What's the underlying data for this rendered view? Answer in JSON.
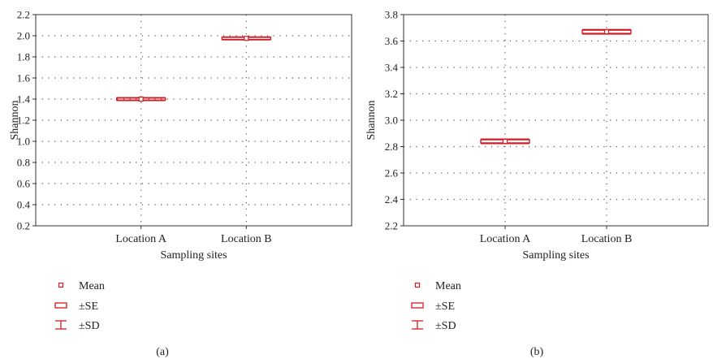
{
  "colors": {
    "mark": "#d01c24",
    "axis": "#333333",
    "grid": "#555555"
  },
  "legend": {
    "mean": "Mean",
    "se": "±SE",
    "sd": "±SD"
  },
  "chart_data": [
    {
      "type": "box",
      "panel_label": "(a)",
      "xlabel": "Sampling sites",
      "ylabel": "Shannon",
      "categories": [
        "Location A",
        "Location B"
      ],
      "ylim": [
        0.2,
        2.2
      ],
      "yticks": [
        "0.2",
        "0.4",
        "0.6",
        "0.8",
        "1.0",
        "1.2",
        "1.4",
        "1.6",
        "1.8",
        "2.0",
        "2.2"
      ],
      "grid": true,
      "legend_position": "bottom-left",
      "series": [
        {
          "category": "Location A",
          "mean": 1.4,
          "se": 0.01,
          "sd": 0.014
        },
        {
          "category": "Location B",
          "mean": 1.975,
          "se": 0.01,
          "sd": 0.014
        }
      ]
    },
    {
      "type": "box",
      "panel_label": "(b)",
      "xlabel": "Sampling sites",
      "ylabel": "Shannon",
      "categories": [
        "Location A",
        "Location B"
      ],
      "ylim": [
        2.2,
        3.8
      ],
      "yticks": [
        "2.2",
        "2.4",
        "2.6",
        "2.8",
        "3.0",
        "3.2",
        "3.4",
        "3.6",
        "3.8"
      ],
      "grid": true,
      "legend_position": "bottom-left",
      "series": [
        {
          "category": "Location A",
          "mean": 2.84,
          "se": 0.012,
          "sd": 0.017
        },
        {
          "category": "Location B",
          "mean": 3.67,
          "se": 0.012,
          "sd": 0.017
        }
      ]
    }
  ]
}
